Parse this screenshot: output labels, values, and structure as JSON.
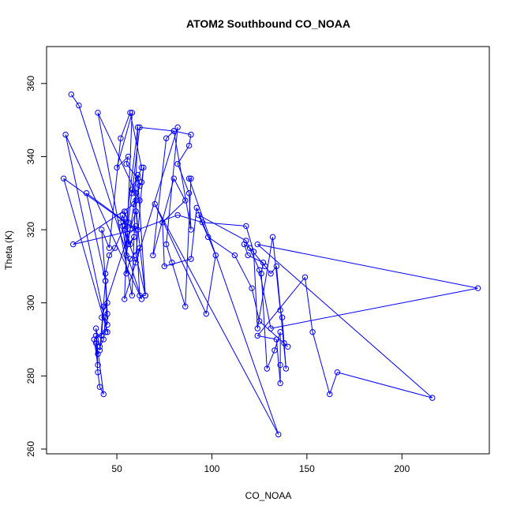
{
  "chart_data": {
    "type": "line",
    "title": "ATOM2 Southbound CO_NOAA",
    "xlabel": "CO_NOAA",
    "ylabel": "Theta (K)",
    "xlim": [
      13,
      246
    ],
    "ylim": [
      258.7,
      370.1
    ],
    "x_ticks": [
      50,
      100,
      150,
      200
    ],
    "y_ticks": [
      260,
      280,
      300,
      320,
      340,
      360
    ],
    "series_color": "#0000ff",
    "markers": "open-circle",
    "grid": false,
    "legend": "none",
    "series": [
      {
        "points": [
          [
            26,
            357
          ],
          [
            30,
            354
          ],
          [
            63,
            301
          ],
          [
            23,
            346
          ],
          [
            45,
            292
          ],
          [
            22,
            334
          ],
          [
            60,
            320
          ],
          [
            27,
            316
          ],
          [
            62,
            328
          ],
          [
            40,
            352
          ],
          [
            58,
            302
          ],
          [
            61,
            348
          ],
          [
            55,
            322
          ],
          [
            34,
            330
          ],
          [
            44,
            306
          ],
          [
            42,
            320
          ],
          [
            46,
            315
          ],
          [
            52,
            345
          ],
          [
            57,
            352
          ],
          [
            63,
            337
          ],
          [
            58,
            330
          ],
          [
            62,
            348
          ],
          [
            80,
            347
          ],
          [
            89,
            346
          ],
          [
            88,
            343
          ],
          [
            82,
            338
          ],
          [
            88,
            330
          ],
          [
            89,
            320
          ],
          [
            80,
            347
          ],
          [
            76,
            345
          ],
          [
            69,
            313
          ],
          [
            80,
            334
          ],
          [
            86,
            328
          ],
          [
            74,
            322
          ],
          [
            75,
            310
          ],
          [
            89,
            312
          ],
          [
            92,
            326
          ],
          [
            102,
            313
          ],
          [
            97,
            297
          ],
          [
            70,
            327
          ],
          [
            135,
            264
          ],
          [
            88,
            334
          ],
          [
            89,
            334
          ],
          [
            86,
            299
          ],
          [
            79,
            311
          ],
          [
            76,
            316
          ],
          [
            82,
            348
          ],
          [
            54,
            301
          ],
          [
            58,
            352
          ],
          [
            50,
            337
          ],
          [
            56,
            340
          ],
          [
            55,
            338
          ],
          [
            61,
            334
          ],
          [
            65,
            302
          ],
          [
            60,
            325
          ],
          [
            42,
            296
          ],
          [
            45,
            294
          ],
          [
            44,
            306
          ],
          [
            41,
            287
          ],
          [
            42,
            291
          ],
          [
            43,
            299
          ],
          [
            45,
            300
          ],
          [
            44,
            296
          ],
          [
            43,
            290
          ],
          [
            41,
            288
          ],
          [
            39,
            293
          ],
          [
            40,
            286
          ],
          [
            39,
            289
          ],
          [
            40,
            281
          ],
          [
            41,
            277
          ],
          [
            43,
            275
          ],
          [
            39,
            291
          ],
          [
            40,
            283
          ],
          [
            38,
            290
          ],
          [
            44,
            292
          ],
          [
            45,
            297
          ],
          [
            44,
            308
          ],
          [
            46,
            313
          ],
          [
            49,
            315
          ],
          [
            54,
            321
          ],
          [
            60,
            321
          ],
          [
            62,
            302
          ],
          [
            65,
            302
          ],
          [
            60,
            313
          ],
          [
            64,
            337
          ],
          [
            63,
            333
          ],
          [
            60,
            330
          ],
          [
            59,
            327
          ],
          [
            57,
            320
          ],
          [
            55,
            313
          ],
          [
            53,
            321
          ],
          [
            52,
            322
          ],
          [
            53,
            324
          ],
          [
            57,
            316
          ],
          [
            59,
            318
          ],
          [
            56,
            316
          ],
          [
            54,
            320
          ],
          [
            60,
            311
          ],
          [
            62,
            315
          ],
          [
            57,
            312
          ],
          [
            55,
            308
          ],
          [
            54,
            325
          ],
          [
            56,
            322
          ],
          [
            58,
            331
          ],
          [
            61,
            335
          ],
          [
            62,
            332
          ],
          [
            60,
            328
          ],
          [
            61,
            320
          ],
          [
            82,
            324
          ],
          [
            95,
            322
          ],
          [
            118,
            321
          ],
          [
            122,
            314
          ],
          [
            124,
            293
          ],
          [
            132,
            318
          ],
          [
            136,
            298
          ],
          [
            137,
            296
          ],
          [
            138,
            289
          ],
          [
            139,
            282
          ],
          [
            134,
            310
          ],
          [
            131,
            308
          ],
          [
            128,
            310
          ],
          [
            120,
            315
          ],
          [
            117,
            316
          ],
          [
            119,
            313
          ],
          [
            127,
            311
          ],
          [
            126,
            308
          ],
          [
            129,
            282
          ],
          [
            133,
            287
          ],
          [
            136,
            292
          ],
          [
            136,
            283
          ],
          [
            136,
            278
          ],
          [
            134,
            290
          ],
          [
            124,
            291
          ],
          [
            149,
            307
          ],
          [
            153,
            292
          ],
          [
            162,
            275
          ],
          [
            166,
            281
          ],
          [
            216,
            274
          ],
          [
            124,
            316
          ],
          [
            240,
            304
          ],
          [
            131,
            293
          ],
          [
            125,
            309
          ],
          [
            118,
            317
          ],
          [
            93,
            324
          ],
          [
            98,
            318
          ],
          [
            112,
            313
          ],
          [
            121,
            304
          ],
          [
            125,
            295
          ],
          [
            140,
            288
          ]
        ]
      }
    ]
  }
}
